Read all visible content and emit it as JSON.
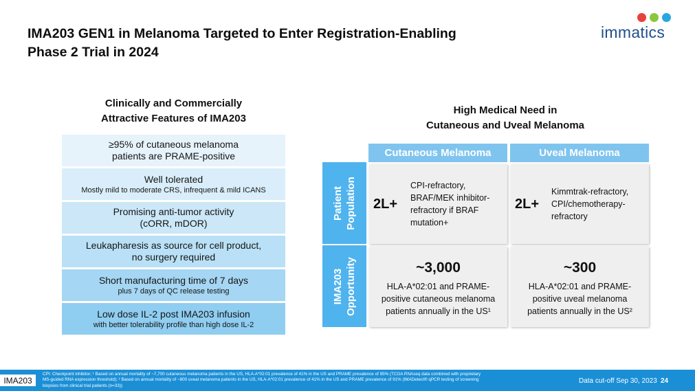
{
  "header": {
    "title_line1": "IMA203 GEN1 in Melanoma Targeted to Enter Registration-Enabling",
    "title_line2": "Phase 2 Trial in 2024",
    "logo_text": "immatics",
    "logo_dot_colors": [
      "#e8413c",
      "#8cc63f",
      "#29a8e0"
    ]
  },
  "left": {
    "heading_line1": "Clinically and Commercially",
    "heading_line2": "Attractive Features of IMA203",
    "features": [
      {
        "main": "≥95% of cutaneous melanoma",
        "main2": "patients are PRAME-positive",
        "sub": "",
        "color": "#e6f3fb"
      },
      {
        "main": "Well tolerated",
        "main2": "",
        "sub": "Mostly mild to moderate CRS, infrequent & mild ICANS",
        "color": "#d9eefa"
      },
      {
        "main": "Promising anti-tumor activity",
        "main2": "(cORR, mDOR)",
        "sub": "",
        "color": "#cbe7f8"
      },
      {
        "main": "Leukapharesis as source for cell product,",
        "main2": "no surgery required",
        "sub": "",
        "color": "#b9e0f6"
      },
      {
        "main": "Short manufacturing time of 7 days",
        "main2": "",
        "sub": "plus 7 days of QC release testing",
        "color": "#a5d6f3"
      },
      {
        "main": "Low dose IL-2 post IMA203 infusion",
        "main2": "",
        "sub": "with better tolerability profile than high dose IL-2",
        "color": "#8fcdf1"
      }
    ]
  },
  "right": {
    "heading_line1": "High Medical Need in",
    "heading_line2": "Cutaneous and Uveal Melanoma",
    "col_headers": [
      "Cutaneous Melanoma",
      "Uveal Melanoma"
    ],
    "row_headers": [
      {
        "line1": "Patient",
        "line2": "Population"
      },
      {
        "line1": "IMA203",
        "line2": "Opportunity"
      }
    ],
    "population": [
      {
        "line": "2L+",
        "desc": [
          "CPI-refractory,",
          "BRAF/MEK inhibitor-",
          "refractory if BRAF",
          "mutation+"
        ]
      },
      {
        "line": "2L+",
        "desc": [
          "Kimmtrak-refractory,",
          "CPI/chemotherapy-",
          "refractory"
        ]
      }
    ],
    "opportunity": [
      {
        "count": "~3,000",
        "desc": [
          "HLA-A*02:01 and PRAME-",
          "positive cutaneous melanoma",
          "patients annually in the US¹"
        ]
      },
      {
        "count": "~300",
        "desc": [
          "HLA-A*02:01 and PRAME-",
          "positive uveal melanoma",
          "patients annually in the US²"
        ]
      }
    ]
  },
  "footer": {
    "tag": "IMA203",
    "footnote_line1": "CPI: Checkpoint inhibitor; ¹ Based on annual mortality of ~7,700 cutaneous melanoma patients in the US, HLA-A*02:01 prevalence of 41% in the US and PRAME prevalence of 95% (TCGA RNAseq data combined with proprietary",
    "footnote_line2": "MS-guided RNA expression threshold); ² Based on annual mortality of ~800 uveal melanoma patients in the US, HLA-A*02:01 prevalence of 41% in the US and PRAME prevalence of 91% (IMADetect® qPCR testing of screening",
    "footnote_line3": "biopsies from clinical trial patients (n=33))",
    "cutoff": "Data cut-off Sep 30, 2023",
    "page": "24"
  }
}
